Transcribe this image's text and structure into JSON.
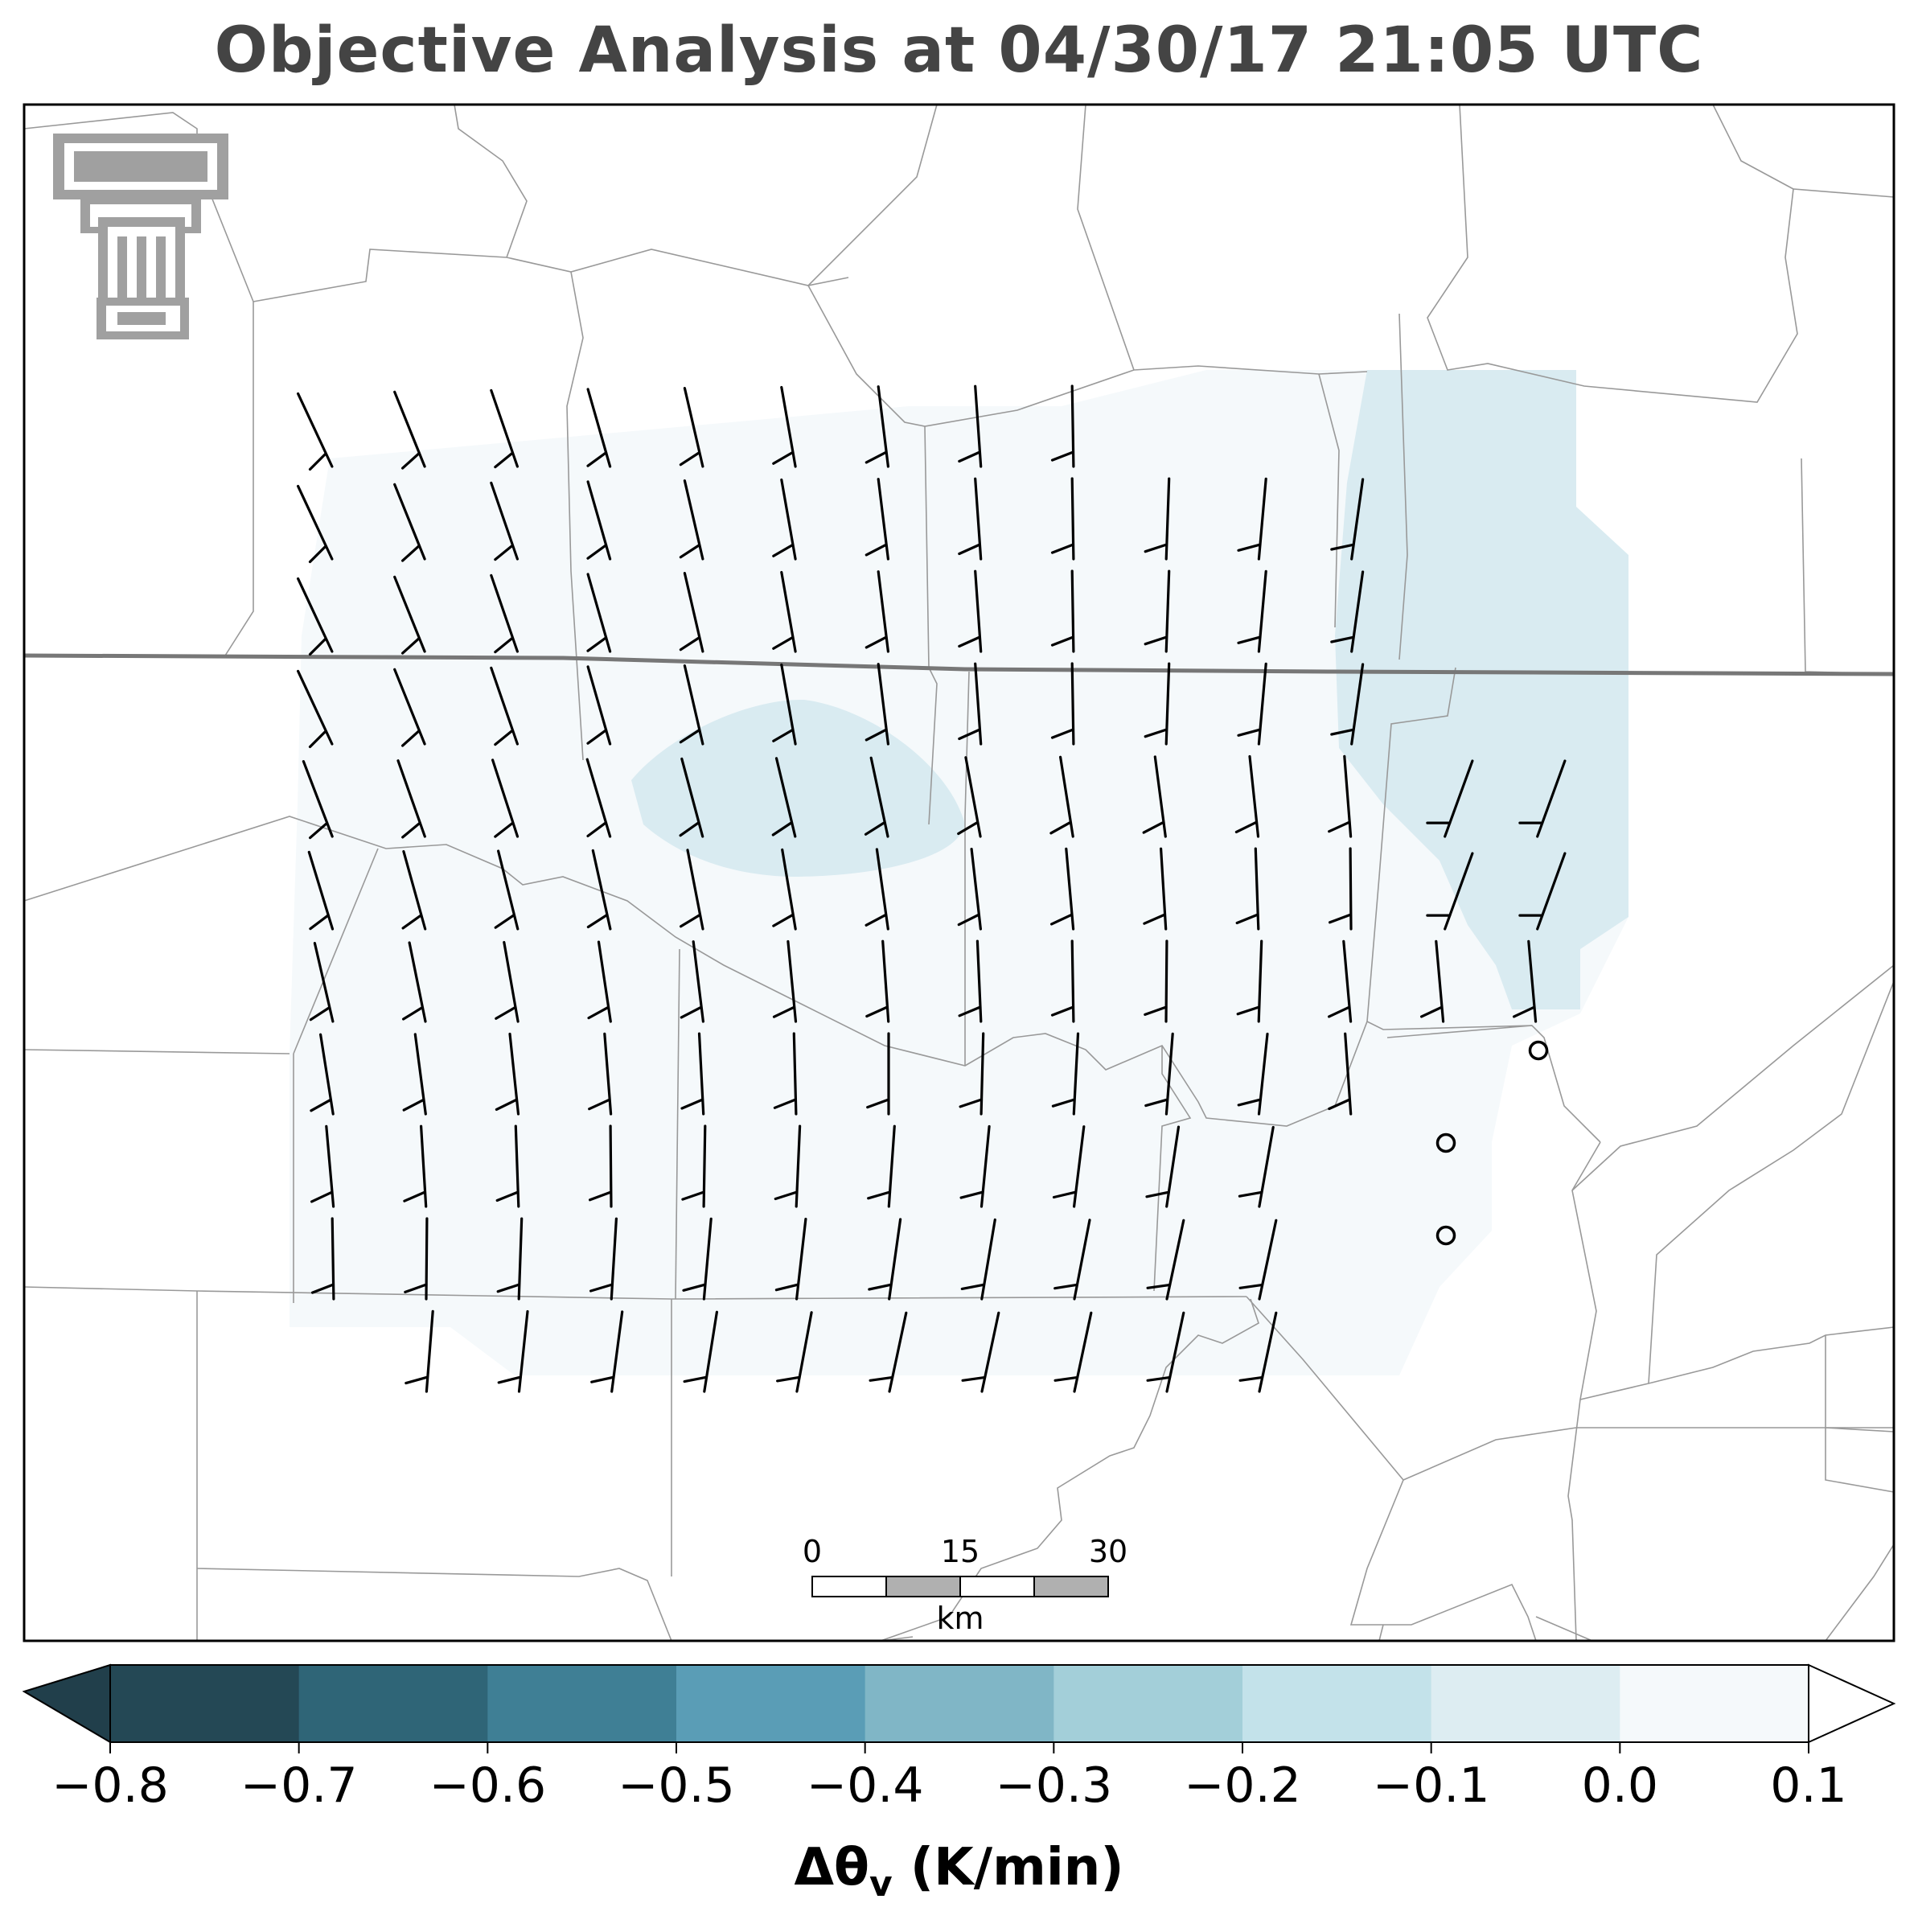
{
  "title": "Objective Analysis at 04/30/17 21:05 UTC",
  "colorbar": {
    "label_main": "Δθ",
    "label_sub": "v",
    "label_unit": " (K/min)",
    "ticks": [
      "−0.8",
      "−0.7",
      "−0.6",
      "−0.5",
      "−0.4",
      "−0.3",
      "−0.2",
      "−0.1",
      "0.0",
      "0.1"
    ],
    "colors": [
      "#244855",
      "#2f6577",
      "#3f7f95",
      "#5a9db6",
      "#80b6c6",
      "#a3cfd9",
      "#c3e2ea",
      "#ddedf2",
      "#f5f9fb"
    ],
    "extend": "both"
  },
  "scalebar": {
    "labels": [
      "0",
      "15",
      "30"
    ],
    "unit": "km"
  },
  "logo": {
    "name": "texas-tech-double-t-logo"
  },
  "stations": [
    {
      "name": "station-1"
    },
    {
      "name": "station-2"
    },
    {
      "name": "station-3"
    }
  ],
  "wind_barbs": {
    "rows": 11,
    "cols": 14,
    "units": "knots"
  }
}
